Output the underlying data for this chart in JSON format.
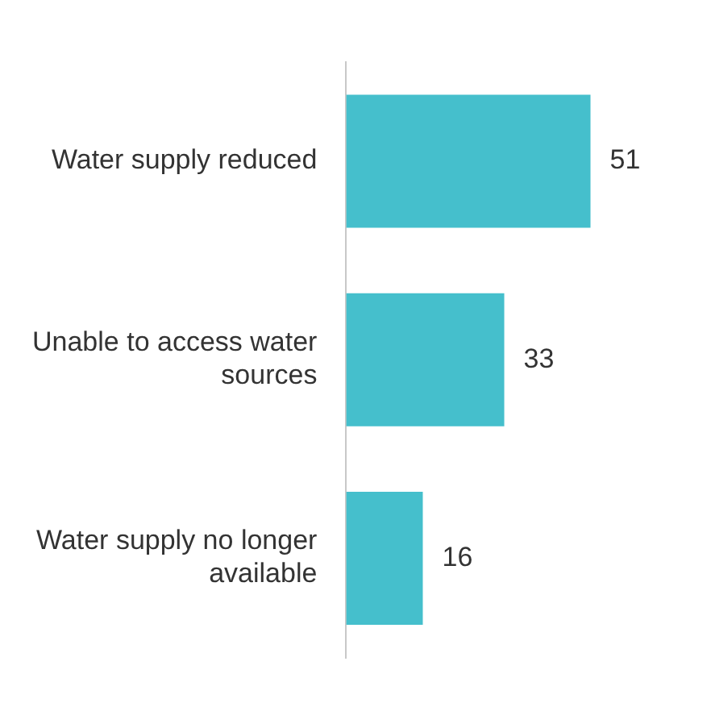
{
  "chart_data": {
    "type": "bar",
    "orientation": "horizontal",
    "data_labels": true,
    "grid": false,
    "legend": false,
    "categories": [
      "Water supply reduced",
      "Unable to access water sources",
      "Water supply no longer available"
    ],
    "values": [
      51,
      33,
      16
    ],
    "color": "#45bfcc"
  }
}
